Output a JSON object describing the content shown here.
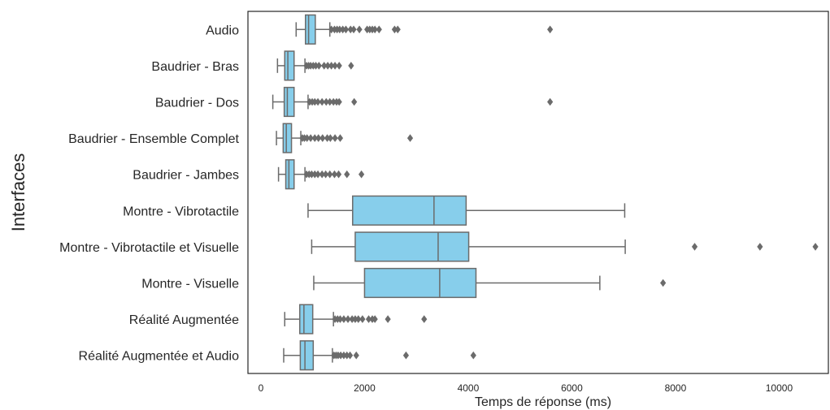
{
  "chart_data": {
    "type": "boxplot",
    "orientation": "horizontal",
    "xlabel": "Temps de réponse (ms)",
    "ylabel": "Interfaces",
    "xlim": [
      -250,
      10950
    ],
    "xticks": [
      0,
      2000,
      4000,
      6000,
      8000,
      10000
    ],
    "xtick_labels": [
      "0",
      "2000",
      "4000",
      "6000",
      "8000",
      "10000"
    ],
    "grid": false,
    "box_color": "#87ceeb",
    "line_color": "#6b6b6b",
    "categories": [
      "Audio",
      "Baudrier - Bras",
      "Baudrier - Dos",
      "Baudrier - Ensemble Complet",
      "Baudrier - Jambes",
      "Montre - Vibrotactile",
      "Montre - Vibrotactile et Visuelle",
      "Montre - Visuelle",
      "Réalité Augmentée",
      "Réalité Augmentée et Audio"
    ],
    "boxes": [
      {
        "whisker_low": 680,
        "q1": 860,
        "median": 920,
        "q3": 1050,
        "whisker_high": 1330,
        "outliers": [
          1360,
          1420,
          1470,
          1520,
          1580,
          1640,
          1730,
          1790,
          1900,
          2050,
          2100,
          2150,
          2200,
          2280,
          2580,
          2640,
          5580
        ]
      },
      {
        "whisker_low": 320,
        "q1": 460,
        "median": 520,
        "q3": 640,
        "whisker_high": 850,
        "outliers": [
          880,
          920,
          960,
          1010,
          1060,
          1120,
          1220,
          1290,
          1360,
          1430,
          1510,
          1740
        ]
      },
      {
        "whisker_low": 230,
        "q1": 450,
        "median": 510,
        "q3": 640,
        "whisker_high": 910,
        "outliers": [
          940,
          990,
          1040,
          1100,
          1180,
          1260,
          1330,
          1400,
          1460,
          1510,
          1800,
          5580
        ]
      },
      {
        "whisker_low": 300,
        "q1": 430,
        "median": 490,
        "q3": 590,
        "whisker_high": 770,
        "outliers": [
          800,
          840,
          890,
          960,
          1040,
          1110,
          1190,
          1280,
          1340,
          1430,
          1530,
          2880
        ]
      },
      {
        "whisker_low": 340,
        "q1": 480,
        "median": 540,
        "q3": 640,
        "whisker_high": 850,
        "outliers": [
          880,
          930,
          980,
          1040,
          1100,
          1180,
          1250,
          1330,
          1420,
          1500,
          1660,
          1940
        ]
      },
      {
        "whisker_low": 910,
        "q1": 1770,
        "median": 3340,
        "q3": 3960,
        "whisker_high": 7020,
        "outliers": []
      },
      {
        "whisker_low": 980,
        "q1": 1820,
        "median": 3420,
        "q3": 4010,
        "whisker_high": 7030,
        "outliers": [
          8370,
          9630,
          10700
        ]
      },
      {
        "whisker_low": 1020,
        "q1": 2000,
        "median": 3450,
        "q3": 4150,
        "whisker_high": 6540,
        "outliers": [
          7760
        ]
      },
      {
        "whisker_low": 460,
        "q1": 750,
        "median": 830,
        "q3": 1000,
        "whisker_high": 1400,
        "outliers": [
          1430,
          1480,
          1530,
          1600,
          1680,
          1760,
          1820,
          1880,
          1960,
          2080,
          2150,
          2200,
          2450,
          3150
        ]
      },
      {
        "whisker_low": 440,
        "q1": 760,
        "median": 850,
        "q3": 1010,
        "whisker_high": 1380,
        "outliers": [
          1410,
          1450,
          1490,
          1540,
          1600,
          1660,
          1720,
          1840,
          2800,
          4100
        ]
      }
    ]
  }
}
